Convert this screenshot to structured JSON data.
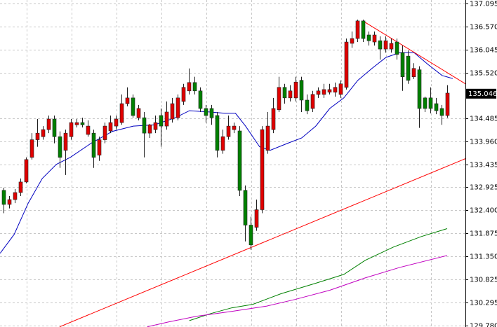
{
  "chart_data": {
    "type": "candlestick",
    "candles": [
      [
        132.85,
        132.91,
        132.33,
        132.53
      ],
      [
        132.53,
        132.72,
        132.44,
        132.64
      ],
      [
        132.64,
        132.88,
        132.56,
        132.8
      ],
      [
        132.8,
        133.12,
        132.72,
        133.04
      ],
      [
        133.04,
        133.6,
        133.01,
        133.55
      ],
      [
        133.6,
        134.15,
        133.55,
        134.0
      ],
      [
        134.0,
        134.47,
        133.84,
        134.15
      ],
      [
        134.07,
        134.31,
        134.0,
        134.23
      ],
      [
        134.23,
        134.55,
        134.15,
        134.47
      ],
      [
        134.47,
        134.55,
        133.92,
        134.07
      ],
      [
        134.07,
        134.19,
        133.36,
        133.6
      ],
      [
        133.76,
        134.23,
        133.2,
        134.15
      ],
      [
        134.07,
        134.47,
        134.0,
        134.39
      ],
      [
        134.34,
        134.47,
        134.28,
        134.39
      ],
      [
        134.39,
        134.5,
        134.28,
        134.34
      ],
      [
        134.12,
        134.44,
        134.07,
        134.31
      ],
      [
        134.15,
        134.23,
        133.36,
        133.6
      ],
      [
        133.65,
        134.07,
        133.52,
        134.0
      ],
      [
        134.0,
        134.39,
        133.92,
        134.31
      ],
      [
        134.2,
        134.55,
        134.15,
        134.39
      ],
      [
        134.31,
        134.55,
        134.23,
        134.47
      ],
      [
        134.39,
        135.03,
        134.34,
        134.82
      ],
      [
        134.82,
        135.19,
        134.76,
        134.95
      ],
      [
        134.95,
        135.03,
        134.5,
        134.55
      ],
      [
        134.5,
        134.79,
        134.44,
        134.71
      ],
      [
        134.5,
        134.63,
        133.6,
        134.15
      ],
      [
        134.15,
        134.36,
        134.04,
        134.34
      ],
      [
        134.23,
        134.55,
        134.15,
        134.39
      ],
      [
        134.55,
        134.71,
        133.84,
        134.31
      ],
      [
        134.31,
        134.87,
        134.23,
        134.63
      ],
      [
        134.47,
        134.95,
        134.39,
        134.82
      ],
      [
        134.5,
        135.03,
        134.44,
        134.95
      ],
      [
        134.87,
        135.27,
        134.79,
        135.19
      ],
      [
        135.11,
        135.62,
        135.03,
        135.3
      ],
      [
        135.3,
        135.43,
        135.03,
        135.11
      ],
      [
        135.11,
        135.19,
        134.63,
        134.71
      ],
      [
        134.71,
        134.79,
        134.39,
        134.55
      ],
      [
        134.71,
        134.79,
        134.34,
        134.5
      ],
      [
        134.55,
        134.63,
        133.6,
        133.76
      ],
      [
        133.76,
        134.23,
        133.68,
        134.07
      ],
      [
        134.07,
        134.55,
        134.0,
        134.31
      ],
      [
        134.23,
        134.39,
        134.15,
        134.31
      ],
      [
        134.2,
        134.31,
        132.72,
        132.85
      ],
      [
        132.85,
        132.96,
        131.69,
        132.06
      ],
      [
        132.06,
        132.25,
        131.5,
        131.61
      ],
      [
        132.01,
        132.64,
        131.93,
        132.41
      ],
      [
        132.41,
        134.31,
        132.33,
        134.23
      ],
      [
        133.76,
        134.63,
        133.68,
        134.31
      ],
      [
        134.23,
        134.95,
        134.15,
        134.71
      ],
      [
        134.68,
        135.43,
        134.63,
        135.19
      ],
      [
        135.19,
        135.27,
        134.82,
        134.95
      ],
      [
        134.95,
        135.24,
        134.87,
        135.11
      ],
      [
        134.95,
        135.43,
        134.87,
        135.31
      ],
      [
        135.35,
        135.43,
        134.63,
        134.9
      ],
      [
        134.9,
        135.03,
        134.58,
        134.66
      ],
      [
        134.71,
        135.11,
        134.63,
        135.03
      ],
      [
        135.03,
        135.19,
        134.95,
        135.11
      ],
      [
        135.03,
        135.27,
        134.95,
        135.14
      ],
      [
        135.08,
        135.27,
        135.03,
        135.14
      ],
      [
        135.08,
        135.3,
        134.98,
        135.19
      ],
      [
        135.03,
        135.35,
        134.95,
        135.27
      ],
      [
        135.19,
        136.3,
        135.14,
        136.22
      ],
      [
        136.19,
        136.46,
        136.09,
        136.3
      ],
      [
        136.3,
        136.73,
        136.22,
        136.7
      ],
      [
        136.7,
        136.73,
        136.22,
        136.3
      ],
      [
        136.38,
        136.46,
        136.14,
        136.25
      ],
      [
        136.22,
        136.46,
        136.14,
        136.38
      ],
      [
        136.25,
        136.35,
        135.82,
        136.06
      ],
      [
        136.06,
        136.35,
        135.98,
        136.25
      ],
      [
        136.06,
        136.3,
        135.98,
        136.19
      ],
      [
        136.22,
        136.3,
        135.82,
        135.94
      ],
      [
        135.98,
        136.14,
        135.11,
        135.43
      ],
      [
        135.9,
        136.03,
        135.27,
        135.35
      ],
      [
        135.43,
        135.74,
        135.38,
        135.62
      ],
      [
        135.59,
        135.67,
        134.27,
        134.71
      ],
      [
        134.95,
        134.98,
        134.63,
        134.71
      ],
      [
        134.95,
        135.19,
        134.6,
        134.71
      ],
      [
        134.82,
        134.95,
        134.58,
        134.66
      ],
      [
        134.71,
        134.79,
        134.34,
        134.55
      ],
      [
        134.55,
        135.24,
        134.5,
        135.06
      ]
    ],
    "bull_color": "#e00000",
    "bear_color": "#008000",
    "lines": [
      {
        "color": "#0000c0",
        "x": [
          -0.6,
          1.9,
          4.4,
          6.9,
          9.4,
          11.9,
          15.6,
          19.4,
          23.1,
          26.9,
          30.6,
          33.1,
          36.9,
          39.4,
          41.3,
          43.1,
          45.6,
          47.5,
          50.6,
          53.1,
          55.6,
          58.1,
          60.6,
          63.1,
          65.6,
          68.1,
          70.6,
          73.1,
          75.6,
          78.1,
          80
        ],
        "values": [
          131.42,
          131.85,
          132.56,
          133.12,
          133.44,
          133.6,
          133.92,
          134.19,
          134.31,
          134.34,
          134.5,
          134.66,
          134.63,
          134.6,
          134.6,
          134.31,
          133.84,
          133.76,
          133.92,
          134.04,
          134.31,
          134.71,
          134.95,
          135.35,
          135.62,
          135.87,
          135.98,
          135.98,
          135.71,
          135.46,
          135.39
        ]
      },
      {
        "color": "#008000",
        "x": [
          33.1,
          36.9,
          40.6,
          44.4,
          49.4,
          55.6,
          60.6,
          64.4,
          69.4,
          74.4,
          79
        ],
        "values": [
          129.89,
          130.05,
          130.18,
          130.26,
          130.5,
          130.74,
          130.94,
          131.26,
          131.56,
          131.8,
          131.98
        ]
      },
      {
        "color": "#c000c0",
        "x": [
          25.6,
          29.4,
          34.4,
          40.6,
          46.9,
          51.9,
          58.1,
          64.4,
          70.6,
          79
        ],
        "values": [
          129.75,
          129.86,
          129.99,
          130.1,
          130.22,
          130.37,
          130.58,
          130.86,
          131.1,
          131.37
        ]
      },
      {
        "color": "#ff0000",
        "x": [
          10,
          82.25
        ],
        "values": [
          129.75,
          133.57
        ]
      },
      {
        "color": "#ff0000",
        "x": [
          64,
          82.25
        ],
        "values": [
          136.7,
          135.27
        ]
      }
    ],
    "xlim": [
      -0.625,
      82.25
    ],
    "ylim": [
      129.745,
      137.175
    ],
    "yticks": [
      137.095,
      {
        "value": 136.57,
        "label": "136.570"
      },
      136.045,
      {
        "value": 135.52,
        "label": "135.520"
      },
      134.485,
      {
        "value": 133.96,
        "label": "133.960"
      },
      133.435,
      132.925,
      {
        "value": 132.4,
        "label": "132.400"
      },
      131.875,
      {
        "value": 131.35,
        "label": "131.350"
      },
      130.825,
      130.295,
      {
        "value": 129.78,
        "label": "129.780"
      }
    ],
    "current_price": 135.046,
    "grid": true
  }
}
